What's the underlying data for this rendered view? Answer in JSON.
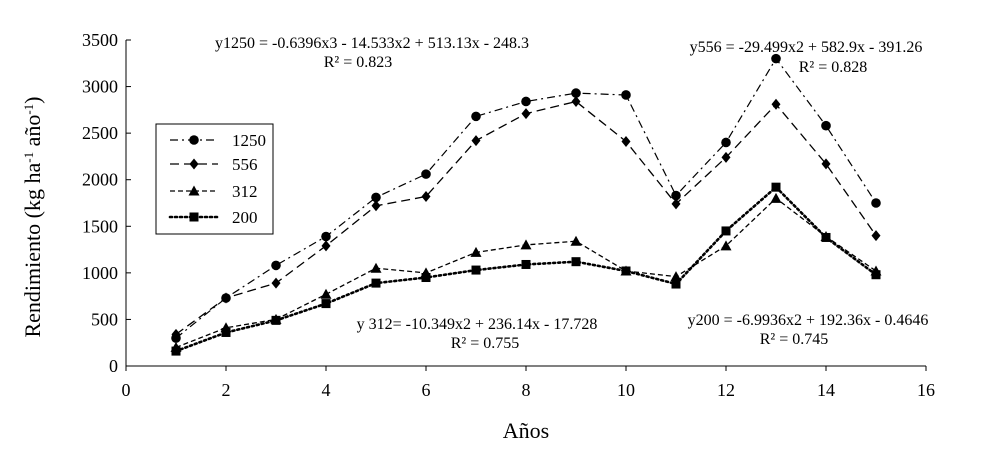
{
  "chart_data": {
    "type": "line",
    "xlabel": "Años",
    "ylabel": "Rendimiento (kg ha-1 año-1)",
    "ylabel_parts": {
      "main": "Rendimiento (kg ha",
      "sup1": "-1",
      "mid": " año",
      "sup2": "-1",
      "end": ")"
    },
    "xlim": [
      0,
      16
    ],
    "ylim": [
      0,
      3500
    ],
    "xticks": [
      0,
      2,
      4,
      6,
      8,
      10,
      12,
      14,
      16
    ],
    "yticks": [
      0,
      500,
      1000,
      1500,
      2000,
      2500,
      3000,
      3500
    ],
    "grid": false,
    "legend_position": "left",
    "series": [
      {
        "name": "1250",
        "marker": "circle",
        "line": "dash-dot",
        "x": [
          1,
          2,
          3,
          4,
          5,
          6,
          7,
          8,
          9,
          10,
          11,
          12,
          13,
          14,
          15
        ],
        "y": [
          300,
          730,
          1080,
          1390,
          1810,
          2060,
          2680,
          2840,
          2930,
          2910,
          1830,
          2400,
          3300,
          2580,
          1750
        ]
      },
      {
        "name": "556",
        "marker": "diamond",
        "line": "dashed",
        "x": [
          1,
          2,
          3,
          4,
          5,
          6,
          7,
          8,
          9,
          10,
          11,
          12,
          13,
          14,
          15
        ],
        "y": [
          340,
          730,
          890,
          1290,
          1720,
          1820,
          2420,
          2710,
          2840,
          2410,
          1740,
          2240,
          2810,
          2170,
          1400
        ]
      },
      {
        "name": "312",
        "marker": "triangle",
        "line": "dashed-short",
        "x": [
          1,
          2,
          3,
          4,
          5,
          6,
          7,
          8,
          9,
          10,
          11,
          12,
          13,
          14,
          15
        ],
        "y": [
          200,
          410,
          500,
          770,
          1050,
          1000,
          1220,
          1300,
          1340,
          1020,
          960,
          1290,
          1800,
          1390,
          1020
        ]
      },
      {
        "name": "200",
        "marker": "square",
        "line": "dotted",
        "x": [
          1,
          2,
          3,
          4,
          5,
          6,
          7,
          8,
          9,
          10,
          11,
          12,
          13,
          14,
          15
        ],
        "y": [
          160,
          360,
          490,
          670,
          890,
          950,
          1030,
          1090,
          1120,
          1020,
          880,
          1450,
          1920,
          1380,
          980
        ]
      }
    ],
    "annotations": [
      {
        "equation": "y1250 = -0.6396x3 - 14.533x2 + 513.13x - 248.3",
        "r2": "R² = 0.823"
      },
      {
        "equation": "y556 = -29.499x2 + 582.9x - 391.26",
        "r2": "R² = 0.828"
      },
      {
        "equation": "y 312= -10.349x2 + 236.14x - 17.728",
        "r2": "R² = 0.755"
      },
      {
        "equation": "y200 = -6.9936x2 + 192.36x - 0.4646",
        "r2": "R² = 0.745"
      }
    ]
  }
}
